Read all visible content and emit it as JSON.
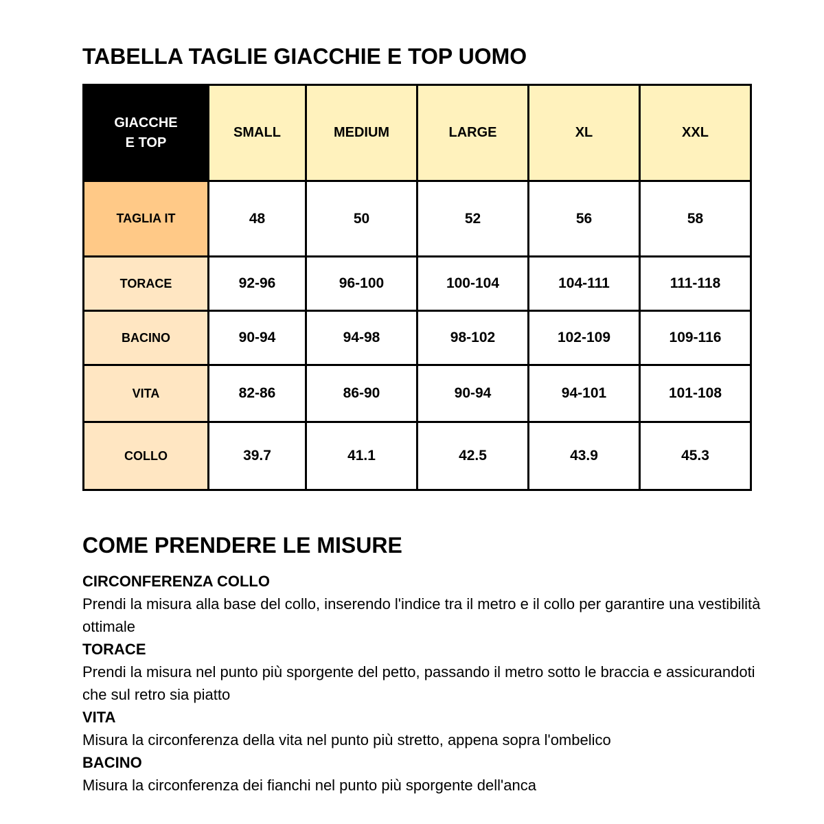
{
  "title": "TABELLA TAGLIE GIACCHIE E TOP UOMO",
  "table": {
    "corner": [
      "GIACCHE",
      "E TOP"
    ],
    "sizes": [
      "SMALL",
      "MEDIUM",
      "LARGE",
      "XL",
      "XXL"
    ],
    "rows": [
      {
        "label": "TAGLIA IT",
        "values": [
          "48",
          "50",
          "52",
          "56",
          "58"
        ]
      },
      {
        "label": "TORACE",
        "values": [
          "92-96",
          "96-100",
          "100-104",
          "104-111",
          "111-118"
        ]
      },
      {
        "label": "BACINO",
        "values": [
          "90-94",
          "94-98",
          "98-102",
          "102-109",
          "109-116"
        ]
      },
      {
        "label": "VITA",
        "values": [
          "82-86",
          "86-90",
          "90-94",
          "94-101",
          "101-108"
        ]
      },
      {
        "label": "COLLO",
        "values": [
          "39.7",
          "41.1",
          "42.5",
          "43.9",
          "45.3"
        ]
      }
    ],
    "colors": {
      "corner": "#000000",
      "size_header": "#FFF2BD",
      "taglia_header": "#FFC987",
      "row_header": "#FFE6C2"
    }
  },
  "guide": {
    "title": "COME PRENDERE LE MISURE",
    "items": [
      {
        "title": "CIRCONFERENZA COLLO",
        "text": "Prendi la misura alla base del collo, inserendo l'indice tra il metro e il collo per garantire una vestibilità ottimale"
      },
      {
        "title": "TORACE",
        "text": "Prendi la misura nel punto più sporgente del petto, passando il metro sotto le braccia e assicurandoti che sul retro sia piatto"
      },
      {
        "title": "VITA",
        "text": "Misura la circonferenza della vita nel punto più stretto, appena sopra l'ombelico"
      },
      {
        "title": "BACINO",
        "text": "Misura la circonferenza dei fianchi nel punto più sporgente dell'anca"
      }
    ]
  }
}
